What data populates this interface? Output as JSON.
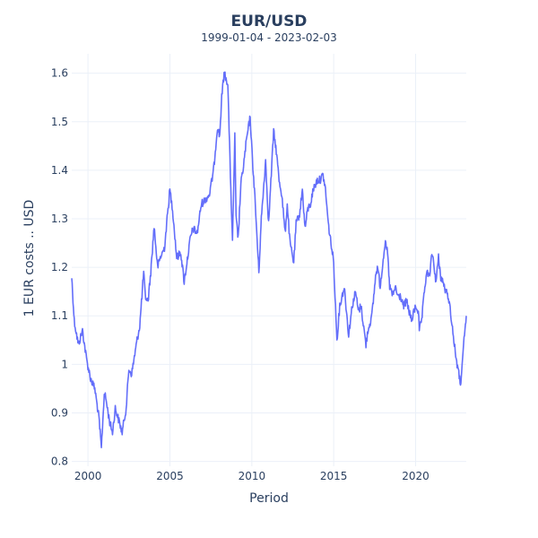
{
  "chart_data": {
    "type": "line",
    "title": "EUR/USD",
    "subtitle": "1999-01-04 - 2023-02-03",
    "xlabel": "Period",
    "ylabel": "1 EUR costs .. USD",
    "xlim": [
      "1999-01-04",
      "2023-02-03"
    ],
    "ylim": [
      0.79,
      1.64
    ],
    "x_ticks": [
      {
        "value": "2000-01-01",
        "label": "2000"
      },
      {
        "value": "2005-01-01",
        "label": "2005"
      },
      {
        "value": "2010-01-01",
        "label": "2010"
      },
      {
        "value": "2015-01-01",
        "label": "2015"
      },
      {
        "value": "2020-01-01",
        "label": "2020"
      }
    ],
    "y_ticks": [
      {
        "value": 0.8,
        "label": "0.8"
      },
      {
        "value": 0.9,
        "label": "0.9"
      },
      {
        "value": 1.0,
        "label": "1"
      },
      {
        "value": 1.1,
        "label": "1.1"
      },
      {
        "value": 1.2,
        "label": "1.2"
      },
      {
        "value": 1.3,
        "label": "1.3"
      },
      {
        "value": 1.4,
        "label": "1.4"
      },
      {
        "value": 1.5,
        "label": "1.5"
      },
      {
        "value": 1.6,
        "label": "1.6"
      }
    ],
    "grid": true,
    "series": [
      {
        "name": "",
        "color": "#636efa",
        "x": [
          "1999-01-04",
          "1999-03-01",
          "1999-06-01",
          "1999-09-01",
          "1999-12-01",
          "2000-03-01",
          "2000-06-01",
          "2000-09-01",
          "2000-10-26",
          "2000-12-29",
          "2001-02-01",
          "2001-05-01",
          "2001-07-01",
          "2001-09-01",
          "2001-11-01",
          "2002-02-01",
          "2002-05-01",
          "2002-07-01",
          "2002-09-01",
          "2002-12-31",
          "2003-03-01",
          "2003-05-27",
          "2003-07-01",
          "2003-09-01",
          "2003-11-01",
          "2004-01-15",
          "2004-04-01",
          "2004-06-01",
          "2004-09-01",
          "2004-12-30",
          "2005-03-01",
          "2005-06-01",
          "2005-09-01",
          "2005-11-15",
          "2006-01-15",
          "2006-04-01",
          "2006-06-01",
          "2006-09-01",
          "2006-12-01",
          "2007-03-01",
          "2007-06-01",
          "2007-09-01",
          "2007-11-27",
          "2008-01-15",
          "2008-03-01",
          "2008-04-22",
          "2008-07-15",
          "2008-09-01",
          "2008-10-27",
          "2008-12-18",
          "2009-01-15",
          "2009-03-04",
          "2009-05-01",
          "2009-07-01",
          "2009-09-01",
          "2009-11-25",
          "2010-01-15",
          "2010-03-01",
          "2010-06-07",
          "2010-08-01",
          "2010-11-04",
          "2011-01-10",
          "2011-05-02",
          "2011-07-01",
          "2011-09-01",
          "2011-11-01",
          "2012-01-13",
          "2012-03-01",
          "2012-05-01",
          "2012-07-24",
          "2012-09-15",
          "2012-12-01",
          "2013-02-01",
          "2013-04-01",
          "2013-06-01",
          "2013-08-01",
          "2013-10-01",
          "2014-01-01",
          "2014-03-01",
          "2014-05-08",
          "2014-07-01",
          "2014-09-01",
          "2014-11-01",
          "2014-12-31",
          "2015-03-13",
          "2015-05-15",
          "2015-08-24",
          "2015-11-30",
          "2016-02-15",
          "2016-05-03",
          "2016-07-01",
          "2016-09-01",
          "2016-12-20",
          "2017-02-01",
          "2017-05-01",
          "2017-08-01",
          "2017-09-08",
          "2017-11-01",
          "2018-02-16",
          "2018-04-15",
          "2018-06-01",
          "2018-08-15",
          "2018-10-01",
          "2018-12-01",
          "2019-02-01",
          "2019-04-01",
          "2019-06-15",
          "2019-09-30",
          "2019-12-31",
          "2020-03-01",
          "2020-03-23",
          "2020-05-15",
          "2020-07-15",
          "2020-09-01",
          "2020-11-01",
          "2021-01-06",
          "2021-03-31",
          "2021-05-25",
          "2021-07-15",
          "2021-09-01",
          "2021-11-01",
          "2022-01-01",
          "2022-03-01",
          "2022-05-13",
          "2022-07-14",
          "2022-09-27",
          "2022-11-01",
          "2022-12-15",
          "2023-01-15",
          "2023-02-03"
        ],
        "y": [
          1.18,
          1.09,
          1.04,
          1.07,
          1.01,
          0.97,
          0.95,
          0.89,
          0.827,
          0.94,
          0.93,
          0.88,
          0.86,
          0.91,
          0.89,
          0.86,
          0.91,
          0.99,
          0.98,
          1.05,
          1.08,
          1.19,
          1.14,
          1.13,
          1.19,
          1.285,
          1.2,
          1.22,
          1.24,
          1.36,
          1.32,
          1.22,
          1.23,
          1.17,
          1.21,
          1.26,
          1.28,
          1.27,
          1.33,
          1.34,
          1.35,
          1.4,
          1.49,
          1.47,
          1.55,
          1.6,
          1.58,
          1.42,
          1.25,
          1.47,
          1.3,
          1.26,
          1.37,
          1.41,
          1.46,
          1.51,
          1.42,
          1.36,
          1.19,
          1.3,
          1.42,
          1.29,
          1.48,
          1.44,
          1.38,
          1.35,
          1.27,
          1.33,
          1.25,
          1.21,
          1.29,
          1.31,
          1.36,
          1.28,
          1.32,
          1.33,
          1.36,
          1.38,
          1.38,
          1.39,
          1.36,
          1.29,
          1.25,
          1.21,
          1.05,
          1.12,
          1.16,
          1.06,
          1.12,
          1.15,
          1.11,
          1.12,
          1.04,
          1.07,
          1.1,
          1.19,
          1.2,
          1.16,
          1.25,
          1.23,
          1.16,
          1.14,
          1.16,
          1.14,
          1.14,
          1.12,
          1.13,
          1.09,
          1.12,
          1.11,
          1.07,
          1.09,
          1.15,
          1.19,
          1.18,
          1.23,
          1.17,
          1.22,
          1.18,
          1.17,
          1.15,
          1.14,
          1.1,
          1.04,
          1.0,
          0.96,
          0.99,
          1.05,
          1.08,
          1.1
        ]
      }
    ]
  }
}
